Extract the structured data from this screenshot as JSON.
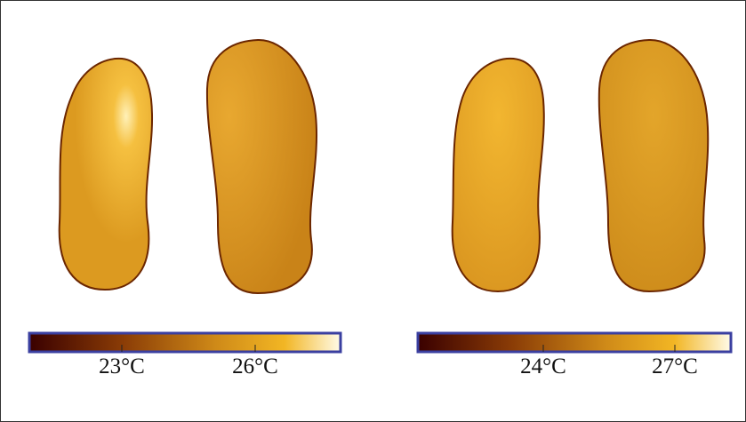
{
  "panels": [
    {
      "colorbar": {
        "ticks": [
          "23°C",
          "26°C"
        ]
      }
    },
    {
      "colorbar": {
        "ticks": [
          "24°C",
          "27°C"
        ]
      }
    }
  ]
}
